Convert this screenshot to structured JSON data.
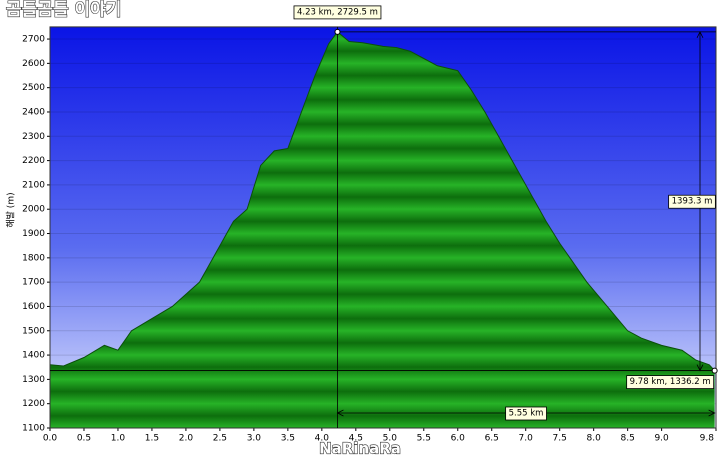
{
  "chart_data": {
    "type": "area",
    "title": "곰틀곰틀 이야기",
    "watermark": "NaRinaRa",
    "y_label": "해발 (m)",
    "x": [
      0.0,
      0.2,
      0.5,
      0.8,
      1.0,
      1.2,
      1.5,
      1.8,
      2.0,
      2.2,
      2.4,
      2.7,
      2.9,
      3.1,
      3.3,
      3.5,
      3.7,
      3.9,
      4.1,
      4.23,
      4.4,
      4.6,
      4.9,
      5.1,
      5.3,
      5.5,
      5.7,
      6.0,
      6.2,
      6.4,
      6.6,
      6.9,
      7.1,
      7.3,
      7.5,
      7.7,
      7.9,
      8.2,
      8.5,
      8.7,
      9.0,
      9.3,
      9.5,
      9.7,
      9.78
    ],
    "values": [
      1360,
      1355,
      1390,
      1440,
      1420,
      1500,
      1550,
      1600,
      1650,
      1700,
      1800,
      1950,
      2000,
      2180,
      2240,
      2250,
      2400,
      2550,
      2680,
      2729.5,
      2690,
      2685,
      2670,
      2665,
      2650,
      2620,
      2590,
      2570,
      2490,
      2400,
      2300,
      2150,
      2050,
      1950,
      1860,
      1780,
      1700,
      1600,
      1500,
      1470,
      1440,
      1420,
      1380,
      1360,
      1336.2
    ],
    "xlim": [
      0,
      9.8
    ],
    "ylim": [
      1100,
      2750
    ],
    "xticks": [
      {
        "value": 0,
        "label": "0.0"
      },
      0.5,
      {
        "value": 1,
        "label": "1.0"
      },
      1.5,
      {
        "value": 2,
        "label": "2.0"
      },
      2.5,
      {
        "value": 3,
        "label": "3.0"
      },
      3.5,
      {
        "value": 4,
        "label": "4.0"
      },
      4.5,
      {
        "value": 5,
        "label": "5.0"
      },
      5.5,
      {
        "value": 6,
        "label": "6.0"
      },
      6.5,
      {
        "value": 7,
        "label": "7.0"
      },
      7.5,
      {
        "value": 8,
        "label": "8.0"
      },
      8.5,
      {
        "value": 9,
        "label": "9.0"
      },
      9.8
    ],
    "yticks": [
      1100,
      1200,
      1300,
      1400,
      1500,
      1600,
      1700,
      1800,
      1900,
      2000,
      2100,
      2200,
      2300,
      2400,
      2500,
      2600,
      2700
    ],
    "grid": true,
    "color": "#1a9e1a",
    "annotations": [
      "4.23 km, 2729.5 m",
      "9.78 km, 1336.2 m",
      "1393.3 m",
      "5.55 km"
    ]
  }
}
